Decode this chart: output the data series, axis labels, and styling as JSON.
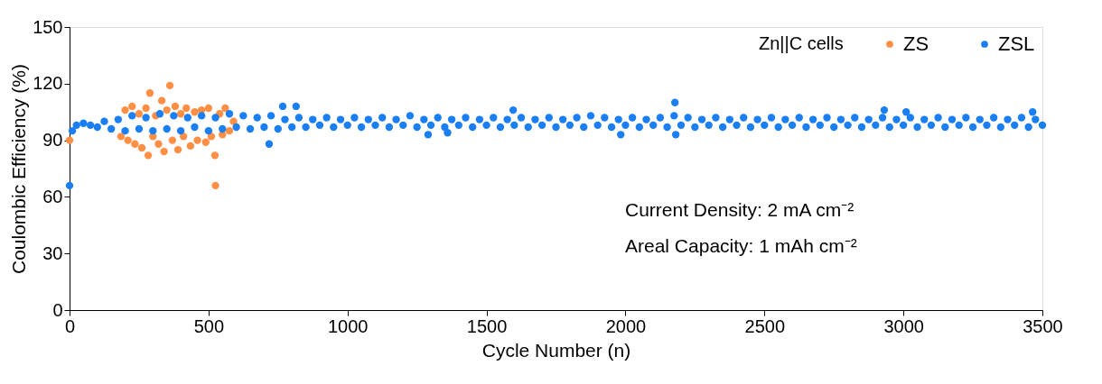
{
  "chart_data": {
    "type": "scatter",
    "xlabel": "Cycle Number (n)",
    "ylabel": "Coulombic Efficiency (%)",
    "legend_title": "Zn||C cells",
    "xlim": [
      0,
      3500
    ],
    "xticks": [
      0,
      500,
      1000,
      1500,
      2000,
      2500,
      3000,
      3500
    ],
    "ylim": [
      0,
      150
    ],
    "yticks": [
      0,
      30,
      60,
      90,
      120,
      150
    ],
    "grid": false,
    "legend": "top right",
    "marker": "circle",
    "annotations": [
      "Current Density: 2 mA cm⁻²",
      "Areal Capacity: 1 mAh cm⁻²"
    ],
    "series": [
      {
        "name": "ZS",
        "color": "#ff8f45",
        "x": [
          0,
          185,
          200,
          210,
          225,
          235,
          250,
          260,
          275,
          283,
          289,
          300,
          310,
          320,
          332,
          340,
          350,
          361,
          370,
          380,
          390,
          400,
          410,
          420,
          435,
          450,
          460,
          475,
          490,
          500,
          510,
          523,
          525,
          540,
          550,
          560,
          575,
          590
        ],
        "values": [
          90,
          92,
          106,
          90,
          108,
          88,
          104,
          86,
          107,
          82,
          115,
          92,
          103,
          88,
          111,
          84,
          106,
          119,
          90,
          108,
          85,
          104,
          92,
          107,
          87,
          105,
          90,
          106,
          89,
          107,
          92,
          82,
          66,
          104,
          93,
          107,
          95,
          100
        ]
      },
      {
        "name": "ZSL",
        "color": "#1a7ef5",
        "x": [
          0,
          10,
          25,
          50,
          75,
          100,
          125,
          150,
          175,
          200,
          225,
          250,
          275,
          300,
          325,
          350,
          375,
          400,
          425,
          450,
          475,
          500,
          525,
          550,
          575,
          600,
          625,
          650,
          675,
          700,
          718,
          725,
          750,
          767,
          775,
          800,
          815,
          825,
          850,
          875,
          900,
          925,
          950,
          975,
          1000,
          1025,
          1050,
          1075,
          1100,
          1125,
          1150,
          1175,
          1200,
          1225,
          1250,
          1275,
          1290,
          1300,
          1325,
          1350,
          1360,
          1375,
          1400,
          1425,
          1450,
          1475,
          1500,
          1525,
          1550,
          1575,
          1596,
          1600,
          1625,
          1650,
          1675,
          1700,
          1725,
          1750,
          1775,
          1800,
          1825,
          1850,
          1875,
          1900,
          1925,
          1950,
          1975,
          1983,
          2000,
          2025,
          2050,
          2075,
          2100,
          2125,
          2150,
          2175,
          2178,
          2181,
          2200,
          2225,
          2250,
          2275,
          2300,
          2325,
          2350,
          2375,
          2400,
          2425,
          2450,
          2475,
          2500,
          2525,
          2550,
          2575,
          2600,
          2625,
          2650,
          2675,
          2700,
          2725,
          2750,
          2775,
          2800,
          2825,
          2850,
          2875,
          2900,
          2925,
          2931,
          2950,
          2975,
          3000,
          3010,
          3025,
          3050,
          3075,
          3100,
          3125,
          3150,
          3175,
          3200,
          3225,
          3250,
          3275,
          3300,
          3325,
          3350,
          3375,
          3400,
          3425,
          3450,
          3465,
          3475,
          3500
        ],
        "values": [
          66,
          95,
          98,
          99,
          98,
          97,
          100,
          96,
          101,
          95,
          103,
          96,
          102,
          95,
          104,
          96,
          103,
          95,
          102,
          97,
          103,
          95,
          102,
          96,
          104,
          97,
          103,
          96,
          102,
          97,
          88,
          103,
          96,
          108,
          101,
          97,
          108,
          102,
          97,
          101,
          98,
          102,
          97,
          101,
          98,
          102,
          97,
          101,
          98,
          102,
          97,
          101,
          98,
          103,
          97,
          101,
          93,
          98,
          102,
          97,
          94,
          101,
          98,
          102,
          97,
          101,
          98,
          102,
          97,
          101,
          106,
          98,
          102,
          97,
          101,
          98,
          102,
          97,
          101,
          98,
          102,
          97,
          103,
          98,
          102,
          97,
          101,
          93,
          98,
          102,
          97,
          101,
          98,
          102,
          97,
          103,
          110,
          93,
          98,
          102,
          97,
          101,
          98,
          102,
          97,
          101,
          98,
          102,
          97,
          101,
          98,
          102,
          97,
          101,
          98,
          102,
          97,
          101,
          98,
          102,
          97,
          101,
          98,
          102,
          97,
          101,
          98,
          102,
          106,
          97,
          101,
          98,
          105,
          102,
          97,
          101,
          98,
          102,
          97,
          101,
          98,
          102,
          97,
          101,
          98,
          102,
          97,
          101,
          98,
          102,
          97,
          105,
          101,
          98
        ]
      }
    ]
  }
}
